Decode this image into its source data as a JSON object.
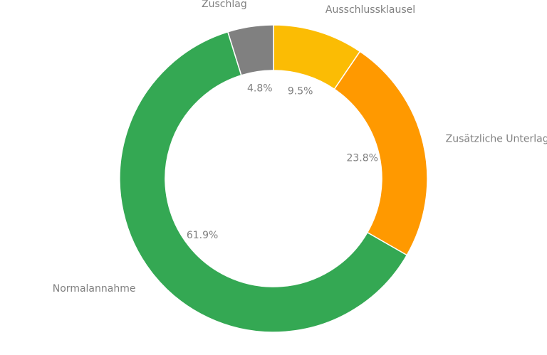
{
  "chart_data": {
    "type": "pie",
    "variant": "donut",
    "title": "",
    "start": "top",
    "direction": "clockwise",
    "slices": [
      {
        "label": "Ausschlussklausel",
        "value": 9.5,
        "display": "9.5%",
        "color": "#fbbc04"
      },
      {
        "label": "Zusätzliche Unterlagen",
        "value": 23.8,
        "display": "23.8%",
        "color": "#ff9900"
      },
      {
        "label": "Normalannahme",
        "value": 61.9,
        "display": "61.9%",
        "color": "#34a853"
      },
      {
        "label": "Zuschlag",
        "value": 4.8,
        "display": "4.8%",
        "color": "#808080"
      }
    ]
  }
}
